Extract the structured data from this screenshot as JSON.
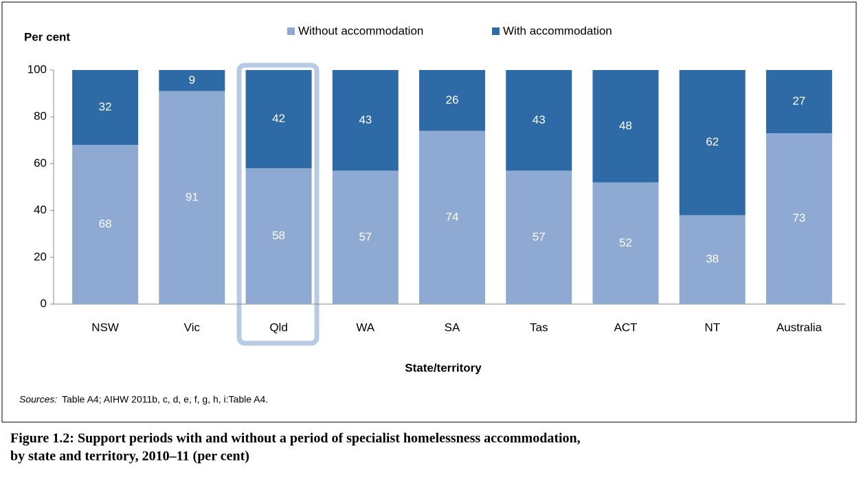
{
  "chart_data": {
    "type": "stacked_bar",
    "y_label": "Per cent",
    "x_label": "State/territory",
    "categories": [
      "NSW",
      "Vic",
      "Qld",
      "WA",
      "SA",
      "Tas",
      "ACT",
      "NT",
      "Australia"
    ],
    "series": [
      {
        "name": "Without accommodation",
        "color": "#8eaad2",
        "values": [
          68,
          91,
          58,
          57,
          74,
          57,
          52,
          38,
          73
        ]
      },
      {
        "name": "With accommodation",
        "color": "#2e6aa5",
        "values": [
          32,
          9,
          42,
          43,
          26,
          43,
          48,
          62,
          27
        ]
      }
    ],
    "ylim": [
      0,
      100
    ],
    "yticks": [
      0,
      20,
      40,
      60,
      80,
      100
    ],
    "legend": "top"
  },
  "source_label": "Sources:",
  "source": "Table A4; AIHW 2011b, c, d, e, f, g, h, i:Table A4.",
  "caption": [
    "Figure 1.2: Support periods with and without a period of specialist homelessness accommodation,",
    "by state and territory, 2010–11 (per cent)"
  ]
}
